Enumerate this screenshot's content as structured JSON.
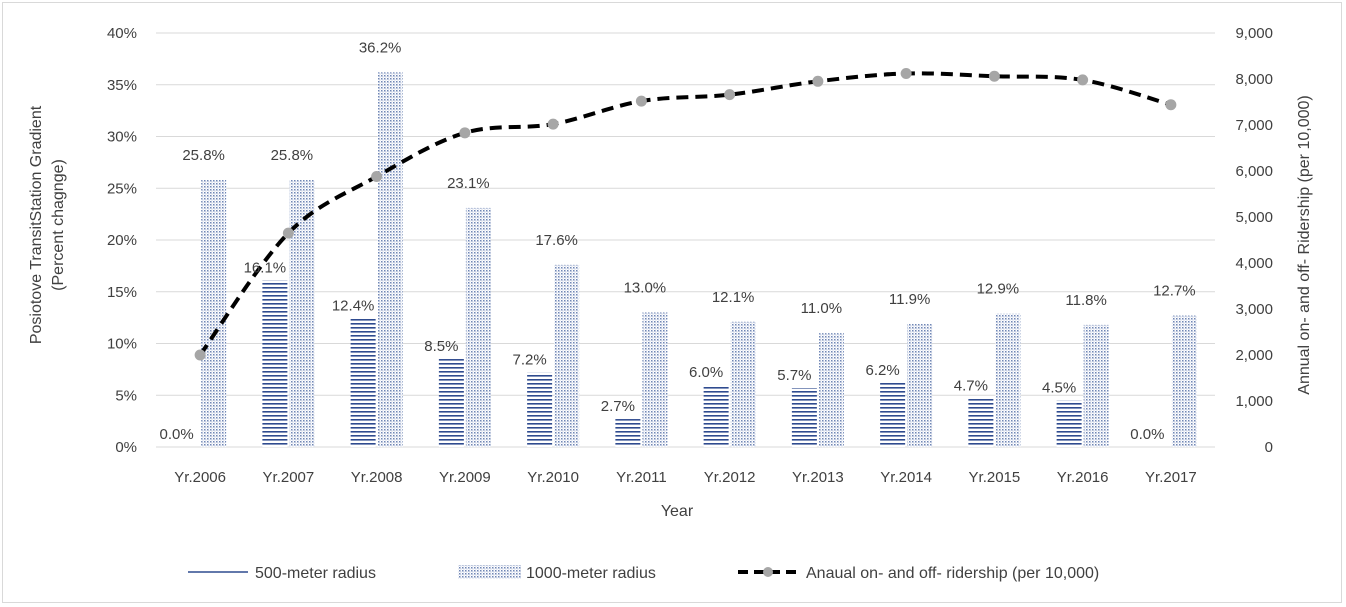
{
  "chart_data": {
    "type": "bar",
    "title": "",
    "categories": [
      "Yr.2006",
      "Yr.2007",
      "Yr.2008",
      "Yr.2009",
      "Yr.2010",
      "Yr.2011",
      "Yr.2012",
      "Yr.2013",
      "Yr.2014",
      "Yr.2015",
      "Yr.2016",
      "Yr.2017"
    ],
    "xlabel": "Year",
    "ylabel": "Posiotove Transit Station Gradient (Percent chagnge)",
    "ylabel_lines": [
      "Posiotove TransitStation Gradient",
      "(Percent chagnge)"
    ],
    "y2label": "Annual on- and off- Ridership (per 10,000)",
    "ylim": [
      0,
      40
    ],
    "y2lim": [
      0,
      9000
    ],
    "yticks": [
      "0%",
      "5%",
      "10%",
      "15%",
      "20%",
      "25%",
      "30%",
      "35%",
      "40%"
    ],
    "y2ticks": [
      "0",
      "1,000",
      "2,000",
      "3,000",
      "4,000",
      "5,000",
      "6,000",
      "7,000",
      "8,000",
      "9,000"
    ],
    "grid": true,
    "legend_position": "bottom",
    "series": [
      {
        "name": "500-meter radius",
        "kind": "bar",
        "pattern": "horizontal-lines",
        "color": "#2f4b8f",
        "values": [
          0.0,
          16.1,
          12.4,
          8.5,
          7.2,
          2.7,
          6.0,
          5.7,
          6.2,
          4.7,
          4.5,
          0.0
        ],
        "labels": [
          "0.0%",
          "16.1%",
          "12.4%",
          "8.5%",
          "7.2%",
          "2.7%",
          "6.0%",
          "5.7%",
          "6.2%",
          "4.7%",
          "4.5%",
          "0.0%"
        ]
      },
      {
        "name": "1000-meter radius",
        "kind": "bar",
        "pattern": "dots",
        "color": "#8fa3c8",
        "values": [
          25.8,
          25.8,
          36.2,
          23.1,
          17.6,
          13.0,
          12.1,
          11.0,
          11.9,
          12.9,
          11.8,
          12.7
        ],
        "labels": [
          "25.8%",
          "25.8%",
          "36.2%",
          "23.1%",
          "17.6%",
          "13.0%",
          "12.1%",
          "11.0%",
          "11.9%",
          "12.9%",
          "11.8%",
          "12.7%"
        ]
      },
      {
        "name": "Anaual on- and off- ridership (per 10,000)",
        "kind": "line",
        "axis": "secondary",
        "style": "dashed",
        "color": "#000000",
        "marker_color": "#a6a6a6",
        "values": [
          2000,
          4650,
          5880,
          6830,
          7020,
          7520,
          7660,
          7950,
          8120,
          8060,
          7980,
          7440
        ]
      }
    ]
  }
}
